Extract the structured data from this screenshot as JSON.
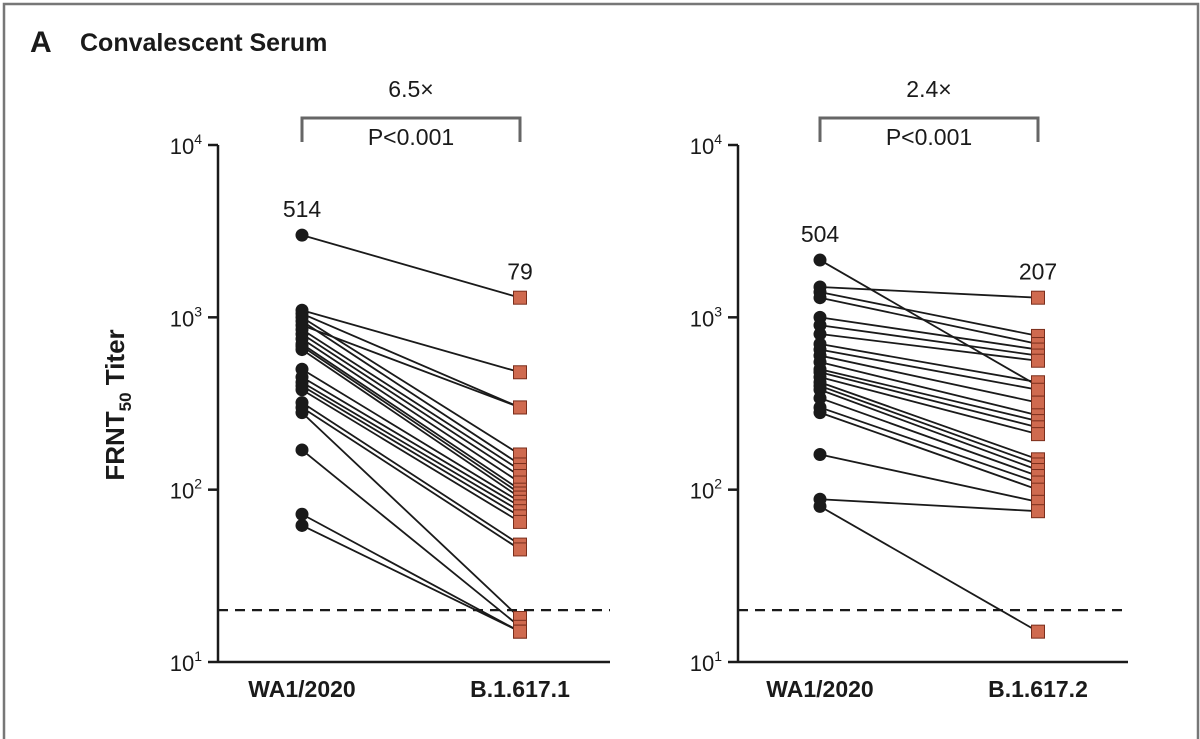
{
  "figure": {
    "panel_letter": "A",
    "panel_title": "Convalescent Serum",
    "ylabel_main": "FRNT",
    "ylabel_sub": "50",
    "ylabel_tail": " Titer"
  },
  "colors": {
    "frame": "#777777",
    "wa1_marker": "#1a1a1a",
    "variant_marker": "#cf6a4f",
    "variant_marker_edge": "#7a2e1c",
    "line": "#1a1a1a",
    "bracket": "#666666"
  },
  "chart_data": [
    {
      "type": "scatter",
      "subtype": "paired-dot",
      "categories": [
        "WA1/2020",
        "B.1.617.1"
      ],
      "y_scale": "log10",
      "ylim": [
        10,
        10000
      ],
      "y_ticks": [
        {
          "base": "10",
          "exp": "1"
        },
        {
          "base": "10",
          "exp": "2"
        },
        {
          "base": "10",
          "exp": "3"
        },
        {
          "base": "10",
          "exp": "4"
        }
      ],
      "limit_of_detection": 20,
      "geometric_mean_labels": [
        "514",
        "79"
      ],
      "bracket": {
        "fold_change": "6.5×",
        "p_value": "P<0.001"
      },
      "pairs": [
        [
          3000,
          1300
        ],
        [
          1100,
          480
        ],
        [
          1050,
          300
        ],
        [
          1000,
          160
        ],
        [
          950,
          140
        ],
        [
          900,
          300
        ],
        [
          850,
          130
        ],
        [
          800,
          120
        ],
        [
          750,
          110
        ],
        [
          700,
          100
        ],
        [
          680,
          95
        ],
        [
          650,
          90
        ],
        [
          500,
          85
        ],
        [
          450,
          80
        ],
        [
          420,
          75
        ],
        [
          400,
          70
        ],
        [
          380,
          65
        ],
        [
          320,
          48
        ],
        [
          300,
          45
        ],
        [
          280,
          18
        ],
        [
          170,
          16
        ],
        [
          72,
          15
        ],
        [
          62,
          15
        ]
      ]
    },
    {
      "type": "scatter",
      "subtype": "paired-dot",
      "categories": [
        "WA1/2020",
        "B.1.617.2"
      ],
      "y_scale": "log10",
      "ylim": [
        10,
        10000
      ],
      "y_ticks": [
        {
          "base": "10",
          "exp": "1"
        },
        {
          "base": "10",
          "exp": "2"
        },
        {
          "base": "10",
          "exp": "3"
        },
        {
          "base": "10",
          "exp": "4"
        }
      ],
      "limit_of_detection": 20,
      "geometric_mean_labels": [
        "504",
        "207"
      ],
      "bracket": {
        "fold_change": "2.4×",
        "p_value": "P<0.001"
      },
      "pairs": [
        [
          2150,
          400
        ],
        [
          1500,
          1300
        ],
        [
          1400,
          780
        ],
        [
          1300,
          700
        ],
        [
          1000,
          650
        ],
        [
          900,
          600
        ],
        [
          800,
          560
        ],
        [
          700,
          420
        ],
        [
          650,
          380
        ],
        [
          600,
          320
        ],
        [
          550,
          270
        ],
        [
          500,
          250
        ],
        [
          480,
          230
        ],
        [
          450,
          210
        ],
        [
          420,
          150
        ],
        [
          400,
          140
        ],
        [
          380,
          130
        ],
        [
          340,
          120
        ],
        [
          300,
          110
        ],
        [
          280,
          100
        ],
        [
          160,
          85
        ],
        [
          88,
          75
        ],
        [
          80,
          15
        ]
      ]
    }
  ]
}
